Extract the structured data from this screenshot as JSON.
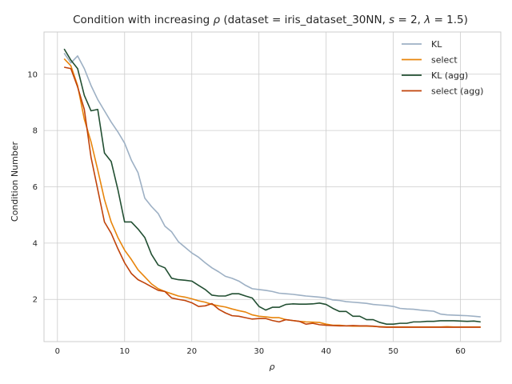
{
  "chart_data": {
    "type": "line",
    "title_main": "Condition with increasing ",
    "title_rho": "ρ",
    "title_params": " (dataset = iris_dataset_30NN, ",
    "title_s": "s",
    "title_s_val": " = 2, ",
    "title_lambda": "λ",
    "title_lambda_val": " = 1.5)",
    "xlabel": "ρ",
    "ylabel": "Condition Number",
    "xlim": [
      -2,
      66
    ],
    "ylim": [
      0.5,
      11.5
    ],
    "xticks": [
      0,
      10,
      20,
      30,
      40,
      50,
      60
    ],
    "yticks": [
      2,
      4,
      6,
      8,
      10
    ],
    "grid": true,
    "legend_position": "top-right",
    "x": [
      1,
      2,
      3,
      4,
      5,
      6,
      7,
      8,
      9,
      10,
      11,
      12,
      13,
      14,
      15,
      16,
      17,
      18,
      19,
      20,
      21,
      22,
      23,
      24,
      25,
      26,
      27,
      28,
      29,
      30,
      31,
      32,
      33,
      34,
      35,
      36,
      37,
      38,
      39,
      40,
      41,
      42,
      43,
      44,
      45,
      46,
      47,
      48,
      49,
      50,
      51,
      52,
      53,
      54,
      55,
      56,
      57,
      58,
      59,
      60,
      61,
      62,
      63
    ],
    "series": [
      {
        "name": "KL",
        "color": "#9db0c4",
        "values": [
          10.75,
          10.4,
          10.65,
          10.2,
          9.6,
          9.1,
          8.7,
          8.3,
          7.95,
          7.55,
          6.95,
          6.5,
          5.6,
          5.3,
          5.05,
          4.6,
          4.4,
          4.05,
          3.85,
          3.65,
          3.5,
          3.3,
          3.12,
          2.98,
          2.82,
          2.75,
          2.65,
          2.5,
          2.38,
          2.35,
          2.32,
          2.28,
          2.22,
          2.2,
          2.18,
          2.15,
          2.12,
          2.1,
          2.08,
          2.05,
          1.98,
          1.96,
          1.92,
          1.9,
          1.88,
          1.86,
          1.82,
          1.8,
          1.78,
          1.75,
          1.68,
          1.66,
          1.65,
          1.62,
          1.6,
          1.58,
          1.48,
          1.45,
          1.44,
          1.43,
          1.42,
          1.4,
          1.38
        ]
      },
      {
        "name": "select",
        "color": "#e8850c",
        "values": [
          10.55,
          10.3,
          9.6,
          8.4,
          7.6,
          6.6,
          5.55,
          4.75,
          4.2,
          3.75,
          3.42,
          3.05,
          2.8,
          2.55,
          2.38,
          2.28,
          2.2,
          2.12,
          2.08,
          2.02,
          1.95,
          1.9,
          1.82,
          1.77,
          1.73,
          1.66,
          1.6,
          1.55,
          1.45,
          1.4,
          1.38,
          1.35,
          1.35,
          1.28,
          1.25,
          1.22,
          1.2,
          1.19,
          1.18,
          1.12,
          1.08,
          1.08,
          1.06,
          1.05,
          1.05,
          1.05,
          1.04,
          1.03,
          1.02,
          1.02,
          1.02,
          1.02,
          1.02,
          1.02,
          1.02,
          1.02,
          1.02,
          1.03,
          1.02,
          1.02,
          1.02,
          1.02,
          1.02
        ]
      },
      {
        "name": "KL (agg)",
        "color": "#224f32",
        "values": [
          10.9,
          10.5,
          10.2,
          9.25,
          8.7,
          8.75,
          7.2,
          6.9,
          5.9,
          4.75,
          4.75,
          4.5,
          4.2,
          3.6,
          3.22,
          3.12,
          2.75,
          2.7,
          2.68,
          2.65,
          2.5,
          2.35,
          2.15,
          2.12,
          2.12,
          2.2,
          2.2,
          2.12,
          2.05,
          1.75,
          1.62,
          1.72,
          1.72,
          1.82,
          1.84,
          1.83,
          1.83,
          1.84,
          1.87,
          1.82,
          1.68,
          1.57,
          1.57,
          1.4,
          1.4,
          1.28,
          1.28,
          1.18,
          1.12,
          1.12,
          1.15,
          1.15,
          1.2,
          1.2,
          1.22,
          1.22,
          1.24,
          1.24,
          1.24,
          1.23,
          1.22,
          1.23,
          1.2
        ]
      },
      {
        "name": "select (agg)",
        "color": "#c0430a",
        "values": [
          10.25,
          10.2,
          9.55,
          8.75,
          7.05,
          5.9,
          4.75,
          4.35,
          3.8,
          3.3,
          2.92,
          2.7,
          2.58,
          2.45,
          2.32,
          2.28,
          2.05,
          2.0,
          1.96,
          1.88,
          1.75,
          1.77,
          1.85,
          1.65,
          1.52,
          1.42,
          1.4,
          1.35,
          1.3,
          1.32,
          1.32,
          1.25,
          1.2,
          1.28,
          1.25,
          1.22,
          1.12,
          1.15,
          1.1,
          1.08,
          1.07,
          1.06,
          1.06,
          1.07,
          1.06,
          1.06,
          1.05,
          1.02,
          1.01,
          1.01,
          1.01,
          1.01,
          1.01,
          1.01,
          1.01,
          1.01,
          1.01,
          1.01,
          1.01,
          1.01,
          1.01,
          1.01,
          1.01
        ]
      }
    ]
  }
}
